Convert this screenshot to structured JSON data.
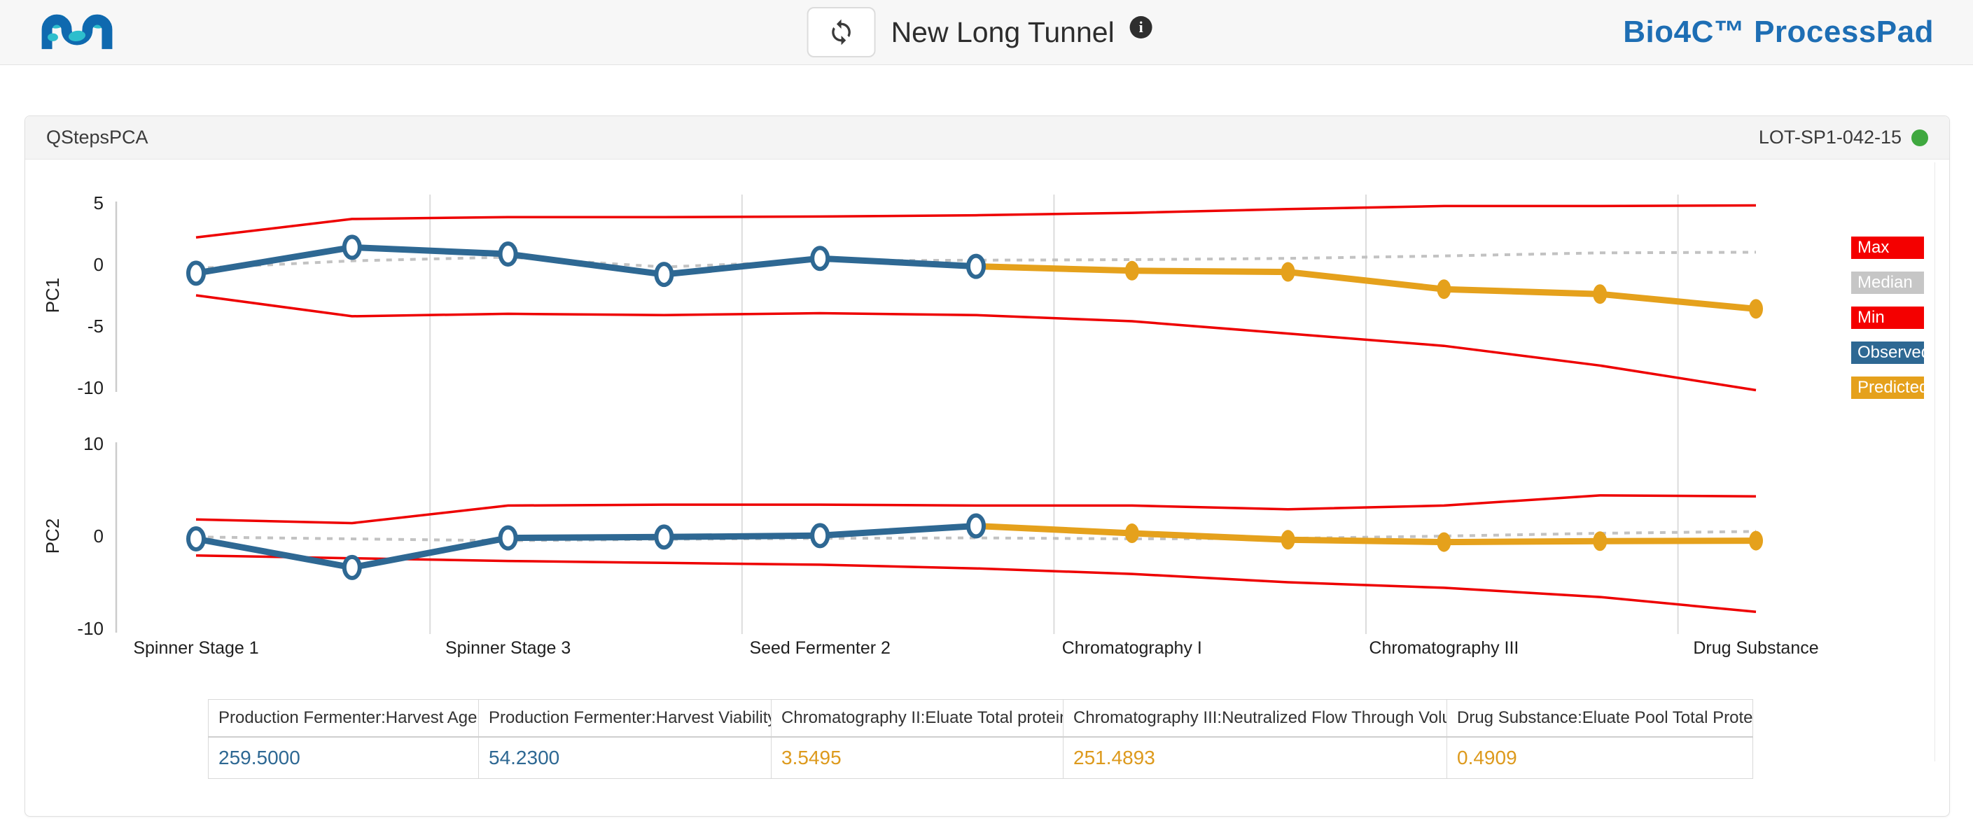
{
  "header": {
    "title": "New Long Tunnel",
    "brand": "Bio4C™ ProcessPad"
  },
  "card": {
    "title": "QStepsPCA",
    "lot_label": "LOT-SP1-042-15",
    "status_color": "#3fa83f"
  },
  "legend": {
    "items": [
      {
        "label": "Max",
        "color": "#f40000"
      },
      {
        "label": "Median",
        "color": "#c6c6c6"
      },
      {
        "label": "Min",
        "color": "#f40000"
      },
      {
        "label": "Observed",
        "color": "#2e6893"
      },
      {
        "label": "Predicted",
        "color": "#e5a11c"
      }
    ]
  },
  "chart_data": {
    "type": "line",
    "n_points": 11,
    "predicted_start_index": 5,
    "x_labels": [
      "Spinner Stage 1",
      "Spinner Stage 3",
      "Seed Fermenter 2",
      "Chromatography I",
      "Chromatography III",
      "Drug Substance"
    ],
    "x_label_point_indices": [
      0,
      2,
      4,
      6,
      8,
      10
    ],
    "colors": {
      "max": "#ee0000",
      "median": "#c2c2c2",
      "min": "#ee0000",
      "observed": "#2e6893",
      "predicted": "#e5a11c",
      "grid": "#dcdcdc",
      "axis": "#cccccc",
      "text": "#1f1f1f"
    },
    "panels": [
      {
        "ylabel": "PC1",
        "yticks": [
          5,
          0,
          -5,
          -10
        ],
        "ylim": [
          -11,
          5.5
        ],
        "max": [
          2.2,
          3.7,
          3.85,
          3.85,
          3.9,
          4.0,
          4.2,
          4.5,
          4.75,
          4.75,
          4.8
        ],
        "median": [
          -0.3,
          0.3,
          0.6,
          -0.2,
          0.3,
          0.35,
          0.4,
          0.5,
          0.7,
          0.95,
          1.0
        ],
        "min": [
          -2.5,
          -4.2,
          -4.0,
          -4.1,
          -3.95,
          -4.1,
          -4.6,
          -5.6,
          -6.6,
          -8.2,
          -10.2
        ],
        "observed": [
          -0.7,
          1.4,
          0.85,
          -0.8,
          0.5,
          -0.15
        ],
        "predicted": [
          -0.15,
          -0.5,
          -0.6,
          -2.0,
          -2.4,
          -3.6
        ]
      },
      {
        "ylabel": "PC2",
        "yticks": [
          10,
          0,
          -10
        ],
        "ylim": [
          -10.5,
          10
        ],
        "max": [
          1.8,
          1.4,
          3.3,
          3.4,
          3.4,
          3.3,
          3.3,
          2.9,
          3.3,
          4.4,
          4.3
        ],
        "median": [
          -0.1,
          -0.3,
          -0.5,
          -0.35,
          -0.25,
          -0.2,
          -0.3,
          -0.25,
          0.0,
          0.3,
          0.5
        ],
        "min": [
          -2.1,
          -2.4,
          -2.7,
          -2.9,
          -3.1,
          -3.5,
          -4.1,
          -5.0,
          -5.6,
          -6.6,
          -8.2
        ],
        "observed": [
          -0.3,
          -3.4,
          -0.2,
          -0.1,
          0.05,
          1.1
        ],
        "predicted": [
          1.1,
          0.3,
          -0.4,
          -0.65,
          -0.55,
          -0.5
        ]
      }
    ]
  },
  "table": {
    "headers": [
      "Production Fermenter:Harvest Age (hrs)",
      "Production Fermenter:Harvest Viability (%)",
      "Chromatography II:Eluate Total protein (gm)",
      "Chromatography III:Neutralized Flow Through Volume (L)",
      "Drug Substance:Eluate Pool Total Protein (gm)"
    ],
    "values": [
      "259.5000",
      "54.2300",
      "3.5495",
      "251.4893",
      "0.4909"
    ],
    "value_colors": [
      "#2e6893",
      "#2e6893",
      "#dd9a1d",
      "#dd9a1d",
      "#dd9a1d"
    ]
  }
}
